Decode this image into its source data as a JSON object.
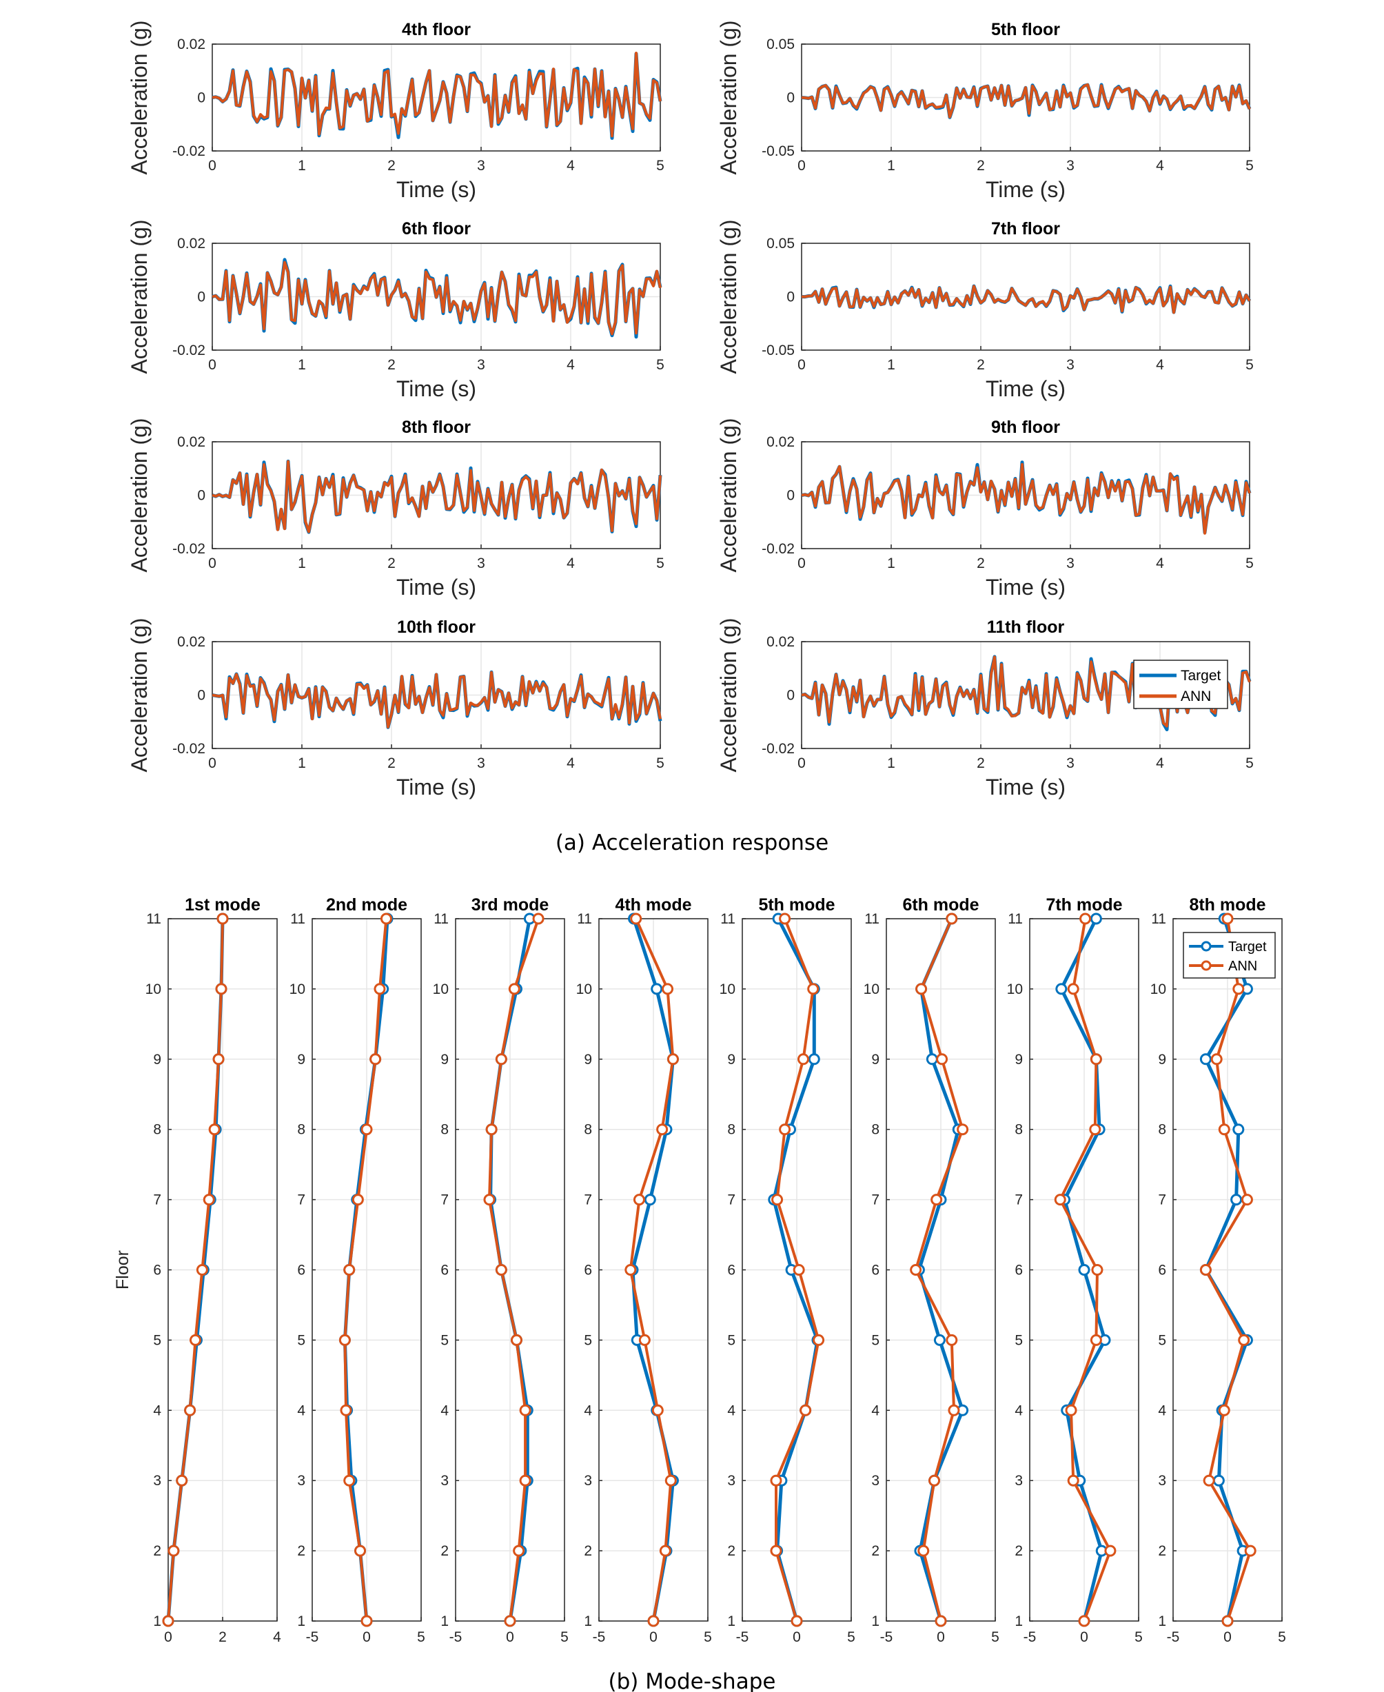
{
  "captions": {
    "a": "(a) Acceleration response",
    "b": "(b) Mode-shape"
  },
  "colors": {
    "target": "#0072BD",
    "ann": "#D95319",
    "axis": "#262626",
    "grid": "#e6e6e6"
  },
  "chart_data": [
    {
      "type": "line",
      "group": "acceleration",
      "title": "4th floor",
      "xlabel": "Time (s)",
      "ylabel": "Acceleration (g)",
      "xlim": [
        0,
        5
      ],
      "ylim": [
        -0.02,
        0.02
      ],
      "xticks": [
        "0",
        "1",
        "2",
        "3",
        "4",
        "5"
      ],
      "yticks": [
        "-0.02",
        "0",
        "0.02"
      ],
      "grid": true,
      "amplitude": 0.011,
      "series": [
        {
          "name": "Target"
        },
        {
          "name": "ANN"
        }
      ]
    },
    {
      "type": "line",
      "group": "acceleration",
      "title": "5th floor",
      "xlabel": "Time (s)",
      "ylabel": "Acceleration (g)",
      "xlim": [
        0,
        5
      ],
      "ylim": [
        -0.05,
        0.05
      ],
      "xticks": [
        "0",
        "1",
        "2",
        "3",
        "4",
        "5"
      ],
      "yticks": [
        "-0.05",
        "0",
        "0.05"
      ],
      "grid": true,
      "amplitude": 0.012,
      "series": [
        {
          "name": "Target"
        },
        {
          "name": "ANN"
        }
      ]
    },
    {
      "type": "line",
      "group": "acceleration",
      "title": "6th floor",
      "xlabel": "Time (s)",
      "ylabel": "Acceleration (g)",
      "xlim": [
        0,
        5
      ],
      "ylim": [
        -0.02,
        0.02
      ],
      "xticks": [
        "0",
        "1",
        "2",
        "3",
        "4",
        "5"
      ],
      "yticks": [
        "-0.02",
        "0",
        "0.02"
      ],
      "grid": true,
      "amplitude": 0.01,
      "series": [
        {
          "name": "Target"
        },
        {
          "name": "ANN"
        }
      ]
    },
    {
      "type": "line",
      "group": "acceleration",
      "title": "7th floor",
      "xlabel": "Time (s)",
      "ylabel": "Acceleration (g)",
      "xlim": [
        0,
        5
      ],
      "ylim": [
        -0.05,
        0.05
      ],
      "xticks": [
        "0",
        "1",
        "2",
        "3",
        "4",
        "5"
      ],
      "yticks": [
        "-0.05",
        "0",
        "0.05"
      ],
      "grid": true,
      "amplitude": 0.01,
      "series": [
        {
          "name": "Target"
        },
        {
          "name": "ANN"
        }
      ]
    },
    {
      "type": "line",
      "group": "acceleration",
      "title": "8th floor",
      "xlabel": "Time (s)",
      "ylabel": "Acceleration (g)",
      "xlim": [
        0,
        5
      ],
      "ylim": [
        -0.02,
        0.02
      ],
      "xticks": [
        "0",
        "1",
        "2",
        "3",
        "4",
        "5"
      ],
      "yticks": [
        "-0.02",
        "0",
        "0.02"
      ],
      "grid": true,
      "amplitude": 0.009,
      "series": [
        {
          "name": "Target"
        },
        {
          "name": "ANN"
        }
      ]
    },
    {
      "type": "line",
      "group": "acceleration",
      "title": "9th floor",
      "xlabel": "Time (s)",
      "ylabel": "Acceleration (g)",
      "xlim": [
        0,
        5
      ],
      "ylim": [
        -0.02,
        0.02
      ],
      "xticks": [
        "0",
        "1",
        "2",
        "3",
        "4",
        "5"
      ],
      "yticks": [
        "-0.02",
        "0",
        "0.02"
      ],
      "grid": true,
      "amplitude": 0.009,
      "series": [
        {
          "name": "Target"
        },
        {
          "name": "ANN"
        }
      ]
    },
    {
      "type": "line",
      "group": "acceleration",
      "title": "10th floor",
      "xlabel": "Time (s)",
      "ylabel": "Acceleration (g)",
      "xlim": [
        0,
        5
      ],
      "ylim": [
        -0.02,
        0.02
      ],
      "xticks": [
        "0",
        "1",
        "2",
        "3",
        "4",
        "5"
      ],
      "yticks": [
        "-0.02",
        "0",
        "0.02"
      ],
      "grid": true,
      "amplitude": 0.009,
      "series": [
        {
          "name": "Target"
        },
        {
          "name": "ANN"
        }
      ]
    },
    {
      "type": "line",
      "group": "acceleration",
      "title": "11th floor",
      "xlabel": "Time (s)",
      "ylabel": "Acceleration (g)",
      "xlim": [
        0,
        5
      ],
      "ylim": [
        -0.02,
        0.02
      ],
      "xticks": [
        "0",
        "1",
        "2",
        "3",
        "4",
        "5"
      ],
      "yticks": [
        "-0.02",
        "0",
        "0.02"
      ],
      "grid": true,
      "amplitude": 0.009,
      "legend": "top-right",
      "legend_entries": [
        "Target",
        "ANN"
      ],
      "series": [
        {
          "name": "Target"
        },
        {
          "name": "ANN"
        }
      ]
    },
    {
      "type": "line",
      "group": "mode",
      "title": "1st mode",
      "ylabel": "Floor",
      "xlim": [
        0,
        4
      ],
      "xticks": [
        "0",
        "2",
        "4"
      ],
      "grid": true,
      "y": [
        1,
        2,
        3,
        4,
        5,
        6,
        7,
        8,
        9,
        10,
        11
      ],
      "series": [
        {
          "name": "Target",
          "values": [
            0.0,
            0.2,
            0.5,
            0.8,
            1.05,
            1.3,
            1.55,
            1.75,
            1.85,
            1.95,
            2.0
          ]
        },
        {
          "name": "ANN",
          "values": [
            0.0,
            0.2,
            0.5,
            0.8,
            1.0,
            1.25,
            1.5,
            1.7,
            1.85,
            1.95,
            2.0
          ]
        }
      ]
    },
    {
      "type": "line",
      "group": "mode",
      "title": "2nd mode",
      "xlim": [
        -5,
        5
      ],
      "xticks": [
        "-5",
        "0",
        "5"
      ],
      "grid": true,
      "y": [
        1,
        2,
        3,
        4,
        5,
        6,
        7,
        8,
        9,
        10,
        11
      ],
      "series": [
        {
          "name": "Target",
          "values": [
            0.0,
            -0.6,
            -1.4,
            -1.8,
            -2.0,
            -1.6,
            -0.9,
            -0.1,
            0.8,
            1.5,
            1.9
          ]
        },
        {
          "name": "ANN",
          "values": [
            0.0,
            -0.6,
            -1.6,
            -1.9,
            -2.0,
            -1.6,
            -0.8,
            0.0,
            0.8,
            1.2,
            1.8
          ]
        }
      ]
    },
    {
      "type": "line",
      "group": "mode",
      "title": "3rd mode",
      "xlim": [
        -5,
        5
      ],
      "xticks": [
        "-5",
        "0",
        "5"
      ],
      "grid": true,
      "y": [
        1,
        2,
        3,
        4,
        5,
        6,
        7,
        8,
        9,
        10,
        11
      ],
      "series": [
        {
          "name": "Target",
          "values": [
            0.0,
            1.0,
            1.6,
            1.6,
            0.6,
            -0.8,
            -1.8,
            -1.7,
            -0.8,
            0.6,
            1.8
          ]
        },
        {
          "name": "ANN",
          "values": [
            0.0,
            0.8,
            1.4,
            1.4,
            0.6,
            -0.8,
            -1.9,
            -1.7,
            -0.8,
            0.4,
            2.6
          ]
        }
      ]
    },
    {
      "type": "line",
      "group": "mode",
      "title": "4th mode",
      "xlim": [
        -5,
        5
      ],
      "xticks": [
        "-5",
        "0",
        "5"
      ],
      "grid": true,
      "y": [
        1,
        2,
        3,
        4,
        5,
        6,
        7,
        8,
        9,
        10,
        11
      ],
      "series": [
        {
          "name": "Target",
          "values": [
            0.0,
            1.2,
            1.8,
            0.3,
            -1.5,
            -1.9,
            -0.3,
            1.2,
            1.8,
            0.3,
            -1.8
          ]
        },
        {
          "name": "ANN",
          "values": [
            0.0,
            1.1,
            1.6,
            0.4,
            -0.8,
            -2.1,
            -1.3,
            0.8,
            1.8,
            1.3,
            -1.6
          ]
        }
      ]
    },
    {
      "type": "line",
      "group": "mode",
      "title": "5th mode",
      "xlim": [
        -5,
        5
      ],
      "xticks": [
        "-5",
        "0",
        "5"
      ],
      "grid": true,
      "y": [
        1,
        2,
        3,
        4,
        5,
        6,
        7,
        8,
        9,
        10,
        11
      ],
      "series": [
        {
          "name": "Target",
          "values": [
            0.0,
            -1.8,
            -1.4,
            0.8,
            1.9,
            -0.5,
            -2.1,
            -0.6,
            1.6,
            1.6,
            -1.7
          ]
        },
        {
          "name": "ANN",
          "values": [
            0.0,
            -1.9,
            -1.9,
            0.8,
            2.0,
            0.2,
            -1.8,
            -1.1,
            0.6,
            1.5,
            -1.1
          ]
        }
      ]
    },
    {
      "type": "line",
      "group": "mode",
      "title": "6th mode",
      "xlim": [
        -5,
        5
      ],
      "xticks": [
        "-5",
        "0",
        "5"
      ],
      "grid": true,
      "y": [
        1,
        2,
        3,
        4,
        5,
        6,
        7,
        8,
        9,
        10,
        11
      ],
      "series": [
        {
          "name": "Target",
          "values": [
            0.0,
            -1.9,
            -0.6,
            2.0,
            -0.1,
            -2.0,
            0.0,
            1.6,
            -0.8,
            -1.8,
            1.0
          ]
        },
        {
          "name": "ANN",
          "values": [
            0.0,
            -1.6,
            -0.6,
            1.2,
            1.0,
            -2.3,
            -0.4,
            2.0,
            0.1,
            -1.8,
            1.0
          ]
        }
      ]
    },
    {
      "type": "line",
      "group": "mode",
      "title": "7th mode",
      "xlim": [
        -5,
        5
      ],
      "xticks": [
        "-5",
        "0",
        "5"
      ],
      "grid": true,
      "y": [
        1,
        2,
        3,
        4,
        5,
        6,
        7,
        8,
        9,
        10,
        11
      ],
      "series": [
        {
          "name": "Target",
          "values": [
            0.0,
            1.6,
            -0.4,
            -1.6,
            1.9,
            0.0,
            -1.8,
            1.4,
            1.1,
            -2.1,
            1.1
          ]
        },
        {
          "name": "ANN",
          "values": [
            0.0,
            2.4,
            -1.0,
            -1.2,
            1.1,
            1.2,
            -2.2,
            1.0,
            1.1,
            -1.0,
            0.1
          ]
        }
      ]
    },
    {
      "type": "line",
      "group": "mode",
      "title": "8th mode",
      "xlim": [
        -5,
        5
      ],
      "xticks": [
        "-5",
        "0",
        "5"
      ],
      "grid": true,
      "y": [
        1,
        2,
        3,
        4,
        5,
        6,
        7,
        8,
        9,
        10,
        11
      ],
      "legend": "top-right",
      "legend_entries": [
        "Target",
        "ANN"
      ],
      "series": [
        {
          "name": "Target",
          "values": [
            0.0,
            1.4,
            -0.8,
            -0.5,
            1.8,
            -2.0,
            0.8,
            1.0,
            -2.0,
            1.8,
            -0.3
          ]
        },
        {
          "name": "ANN",
          "values": [
            0.0,
            2.1,
            -1.7,
            -0.3,
            1.5,
            -2.0,
            1.8,
            -0.3,
            -1.0,
            1.0,
            0.0
          ]
        }
      ]
    }
  ]
}
